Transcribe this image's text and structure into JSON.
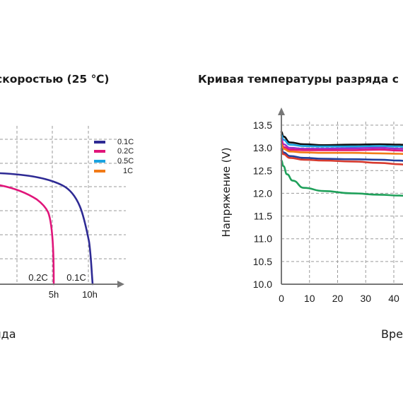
{
  "left_panel": {
    "title": "скоростью (25 ℃)",
    "bottom_label": "яда",
    "chart_data": {
      "type": "line",
      "x_tick_labels": [
        "5h",
        "10h"
      ],
      "end_labels": [
        "0.2C",
        "0.1C"
      ],
      "legend": [
        "0.1C",
        "0.2C",
        "0.5C",
        "1C"
      ],
      "series": [
        {
          "name": "0.1C",
          "color": "#2e2a94",
          "end_hours": 10
        },
        {
          "name": "0.2C",
          "color": "#e0157a",
          "end_hours": 5
        }
      ],
      "legend_colors": [
        "#2e2a94",
        "#e0157a",
        "#1aa3e0",
        "#f27b17"
      ],
      "grid": true
    }
  },
  "right_panel": {
    "title": "Кривая температуры разряда с р",
    "bottom_label": "Вре",
    "chart_data": {
      "type": "line",
      "ylabel": "Напряжение (V)",
      "y_ticks": [
        "13.5",
        "13.0",
        "12.5",
        "12.0",
        "11.5",
        "11.0",
        "10.5",
        "10.0"
      ],
      "x_ticks": [
        "0",
        "10",
        "20",
        "30",
        "40"
      ],
      "ylim": [
        10.0,
        13.5
      ],
      "xlim": [
        0,
        47
      ],
      "grid": true,
      "series": [
        {
          "color": "#111111",
          "x": [
            0,
            0.7,
            3,
            8,
            15,
            25,
            35,
            42,
            47
          ],
          "y": [
            13.35,
            13.25,
            13.12,
            13.08,
            13.06,
            13.07,
            13.08,
            13.07,
            13.05
          ]
        },
        {
          "color": "#1aa3e0",
          "x": [
            0,
            0.7,
            3,
            8,
            15,
            25,
            35,
            42,
            47
          ],
          "y": [
            13.28,
            13.18,
            13.07,
            13.04,
            13.03,
            13.03,
            13.04,
            13.03,
            13.0
          ]
        },
        {
          "color": "#9b2fc9",
          "x": [
            0,
            0.7,
            3,
            8,
            15,
            25,
            35,
            42,
            47
          ],
          "y": [
            13.2,
            13.08,
            13.0,
            12.98,
            12.98,
            12.99,
            13.0,
            12.98,
            12.96
          ]
        },
        {
          "color": "#e0157a",
          "x": [
            0,
            0.7,
            3,
            8,
            15,
            25,
            35,
            42,
            47
          ],
          "y": [
            13.15,
            13.02,
            12.96,
            12.95,
            12.95,
            12.95,
            12.96,
            12.94,
            12.9
          ]
        },
        {
          "color": "#f27b17",
          "x": [
            0,
            0.7,
            3,
            8,
            15,
            25,
            35,
            42,
            47
          ],
          "y": [
            13.08,
            12.98,
            12.92,
            12.9,
            12.89,
            12.89,
            12.88,
            12.87,
            12.85
          ]
        },
        {
          "color": "#1f3f9e",
          "x": [
            0,
            0.7,
            3,
            8,
            15,
            25,
            35,
            42,
            47
          ],
          "y": [
            12.98,
            12.9,
            12.82,
            12.78,
            12.76,
            12.75,
            12.74,
            12.72,
            12.68
          ]
        },
        {
          "color": "#d63a2f",
          "x": [
            0,
            0.7,
            3,
            8,
            15,
            25,
            35,
            42,
            47
          ],
          "y": [
            12.95,
            12.86,
            12.78,
            12.74,
            12.72,
            12.7,
            12.67,
            12.64,
            12.6
          ]
        },
        {
          "color": "#1fa05a",
          "x": [
            0,
            0.7,
            2,
            4,
            8,
            15,
            25,
            35,
            42,
            47
          ],
          "y": [
            12.72,
            12.6,
            12.42,
            12.28,
            12.12,
            12.05,
            12.0,
            11.97,
            11.95,
            11.93
          ]
        }
      ]
    }
  }
}
